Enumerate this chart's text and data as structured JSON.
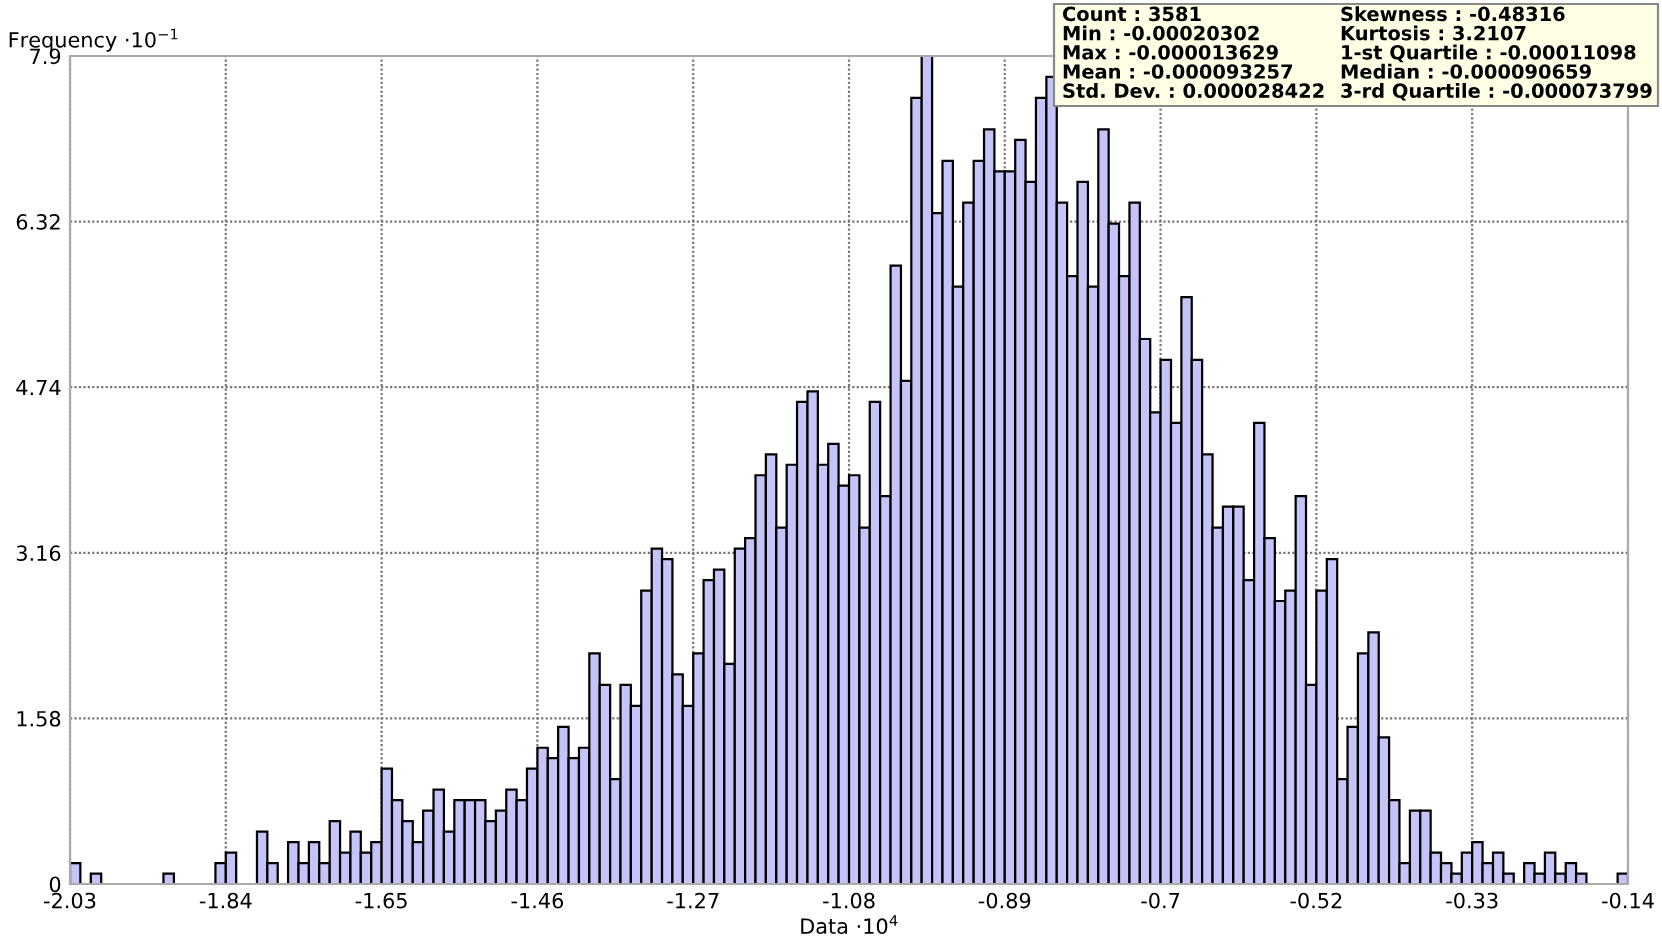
{
  "chart_data": {
    "type": "histogram",
    "xlabel": "Data ·10$^{4}$",
    "ylabel": "Frequency ·10$^{−1}$",
    "bins": [
      -2.0302,
      -2.0176,
      -2.0049,
      -1.9923,
      -1.9797,
      -1.9671,
      -1.9544,
      -1.9418,
      -1.9292,
      -1.9166,
      -1.9039,
      -1.8913,
      -1.8787,
      -1.8661,
      -1.8534,
      -1.8408,
      -1.8282,
      -1.8156,
      -1.8029,
      -1.7903,
      -1.7777,
      -1.7651,
      -1.7524,
      -1.7398,
      -1.7272,
      -1.7145,
      -1.7019,
      -1.6893,
      -1.6767,
      -1.664,
      -1.6514,
      -1.6388,
      -1.6262,
      -1.6135,
      -1.6009,
      -1.5883,
      -1.5757,
      -1.563,
      -1.5504,
      -1.5378,
      -1.5252,
      -1.5125,
      -1.4999,
      -1.4873,
      -1.4747,
      -1.462,
      -1.4494,
      -1.4368,
      -1.4241,
      -1.4115,
      -1.3989,
      -1.3863,
      -1.3736,
      -1.361,
      -1.3484,
      -1.3358,
      -1.3231,
      -1.3105,
      -1.2979,
      -1.2853,
      -1.2726,
      -1.26,
      -1.2474,
      -1.2348,
      -1.2221,
      -1.2095,
      -1.1969,
      -1.1843,
      -1.1716,
      -1.159,
      -1.1464,
      -1.1337,
      -1.1211,
      -1.1085,
      -1.0959,
      -1.0832,
      -1.0706,
      -1.058,
      -1.0454,
      -1.0327,
      -1.0201,
      -1.0075,
      -0.9949,
      -0.9822,
      -0.9696,
      -0.957,
      -0.9444,
      -0.9317,
      -0.9191,
      -0.9065,
      -0.8939,
      -0.8812,
      -0.8686,
      -0.856,
      -0.8433,
      -0.8307,
      -0.8181,
      -0.8055,
      -0.7928,
      -0.7802,
      -0.7676,
      -0.755,
      -0.7423,
      -0.7297,
      -0.7171,
      -0.7045,
      -0.6918,
      -0.6792,
      -0.6666,
      -0.654,
      -0.6413,
      -0.6287,
      -0.6161,
      -0.6035,
      -0.5908,
      -0.5782,
      -0.5656,
      -0.5529,
      -0.5403,
      -0.5277,
      -0.5151,
      -0.5024,
      -0.4898,
      -0.4772,
      -0.4646,
      -0.4519,
      -0.4393,
      -0.4267,
      -0.4141,
      -0.4014,
      -0.3888,
      -0.3762,
      -0.3636,
      -0.3509,
      -0.3383,
      -0.3257,
      -0.3131,
      -0.3004,
      -0.2878,
      -0.2752,
      -0.2625,
      -0.2499,
      -0.2373,
      -0.2247,
      -0.212,
      -0.1994,
      -0.1868,
      -0.1742,
      -0.1615,
      -0.1489,
      -0.13629
    ],
    "values": [
      0.2,
      0,
      0.1,
      0,
      0,
      0,
      0,
      0,
      0,
      0.1,
      0,
      0,
      0,
      0,
      0.2,
      0.3,
      0,
      0,
      0.5,
      0.2,
      0,
      0.4,
      0.2,
      0.4,
      0.2,
      0.6,
      0.3,
      0.5,
      0.3,
      0.4,
      1.1,
      0.8,
      0.6,
      0.4,
      0.7,
      0.9,
      0.5,
      0.8,
      0.8,
      0.8,
      0.6,
      0.7,
      0.9,
      0.8,
      1.1,
      1.3,
      1.2,
      1.5,
      1.2,
      1.3,
      2.2,
      1.9,
      1.0,
      1.9,
      1.7,
      2.8,
      3.2,
      3.1,
      2.0,
      1.7,
      2.2,
      2.9,
      3.0,
      2.1,
      3.2,
      3.3,
      3.9,
      4.1,
      3.4,
      4.0,
      4.6,
      4.7,
      4.0,
      4.2,
      3.8,
      3.9,
      3.4,
      4.6,
      3.7,
      5.9,
      4.8,
      7.5,
      7.9,
      6.4,
      6.9,
      5.7,
      6.5,
      6.9,
      7.2,
      6.8,
      6.8,
      7.1,
      6.7,
      7.5,
      7.7,
      6.5,
      5.8,
      6.7,
      5.7,
      7.2,
      6.3,
      5.8,
      6.5,
      5.2,
      4.5,
      5.0,
      4.4,
      5.6,
      5.0,
      4.1,
      3.4,
      3.6,
      3.6,
      2.9,
      4.4,
      3.3,
      2.7,
      2.8,
      3.7,
      1.9,
      2.8,
      3.1,
      1.0,
      1.5,
      2.2,
      2.4,
      1.4,
      0.8,
      0.2,
      0.7,
      0.7,
      0.3,
      0.2,
      0.1,
      0.3,
      0.4,
      0.2,
      0.3,
      0.1,
      0,
      0.2,
      0.1,
      0.3,
      0.1,
      0.2,
      0.1,
      0,
      0,
      0,
      0.1
    ],
    "color": "#c4c4f8",
    "xlim": [
      -2.0302,
      -0.13629
    ],
    "xticks": [
      {
        "value": -2.0302,
        "label": "-2.03"
      },
      {
        "value": -1.8408,
        "label": "-1.84"
      },
      {
        "value": -1.6514,
        "label": "-1.65"
      },
      {
        "value": -1.462,
        "label": "-1.46"
      },
      {
        "value": -1.2726,
        "label": "-1.27"
      },
      {
        "value": -1.0832,
        "label": "-1.08"
      },
      {
        "value": -0.8939,
        "label": "-0.89"
      },
      {
        "value": -0.7045,
        "label": "-0.7"
      },
      {
        "value": -0.5151,
        "label": "-0.52"
      },
      {
        "value": -0.3257,
        "label": "-0.33"
      },
      {
        "value": -0.13629,
        "label": "-0.14"
      }
    ],
    "ylim": [
      0,
      7.9
    ],
    "yticks": [
      0,
      1.58,
      3.16,
      4.74,
      6.32,
      7.9
    ],
    "grid": true,
    "annotations": [
      "Count : 3581",
      "Skewness : -0.48316",
      "Min : -0.00020302",
      "Kurtosis : 3.2107",
      "Max : -0.000013629",
      "1-st Quartile : -0.00011098",
      "Mean : -0.000093257",
      "Median : -0.000090659",
      "Std. Dev. : 0.000028422",
      "3-rd Quartile : -0.000073799"
    ]
  }
}
